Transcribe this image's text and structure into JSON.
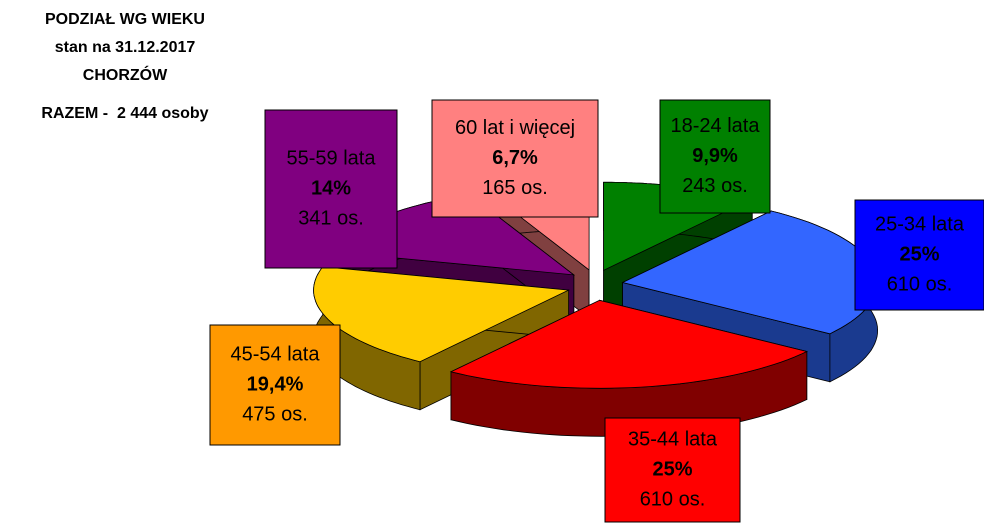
{
  "chart_data": {
    "type": "pie",
    "title": [
      "PODZIAŁ WG WIEKU",
      "stan na 31.12.2017",
      "CHORZÓW",
      "RAZEM -  2 444 osoby"
    ],
    "categories": [
      "18-24 lata",
      "25-34 lata",
      "35-44 lata",
      "45-54 lata",
      "55-59 lata",
      "60 lat i więcej"
    ],
    "values": [
      9.9,
      25,
      25,
      19.4,
      14,
      6.7
    ],
    "value_labels": [
      "9,9%",
      "25%",
      "25%",
      "19,4%",
      "14%",
      "6,7%"
    ],
    "counts": [
      243,
      610,
      610,
      475,
      341,
      165
    ],
    "count_labels": [
      "243 os.",
      "610 os.",
      "610 os.",
      "475 os.",
      "341 os.",
      "165 os."
    ],
    "colors": [
      "#008000",
      "#3366ff",
      "#ff0000",
      "#ffcc00",
      "#800080",
      "#ff8080"
    ],
    "side_colors": [
      "#004000",
      "#1a3a8f",
      "#800000",
      "#806600",
      "#400040",
      "#804040"
    ],
    "label_colors": [
      "#008000",
      "#0000ff",
      "#ff0000",
      "#ff9900",
      "#800080",
      "#ff8080"
    ]
  }
}
